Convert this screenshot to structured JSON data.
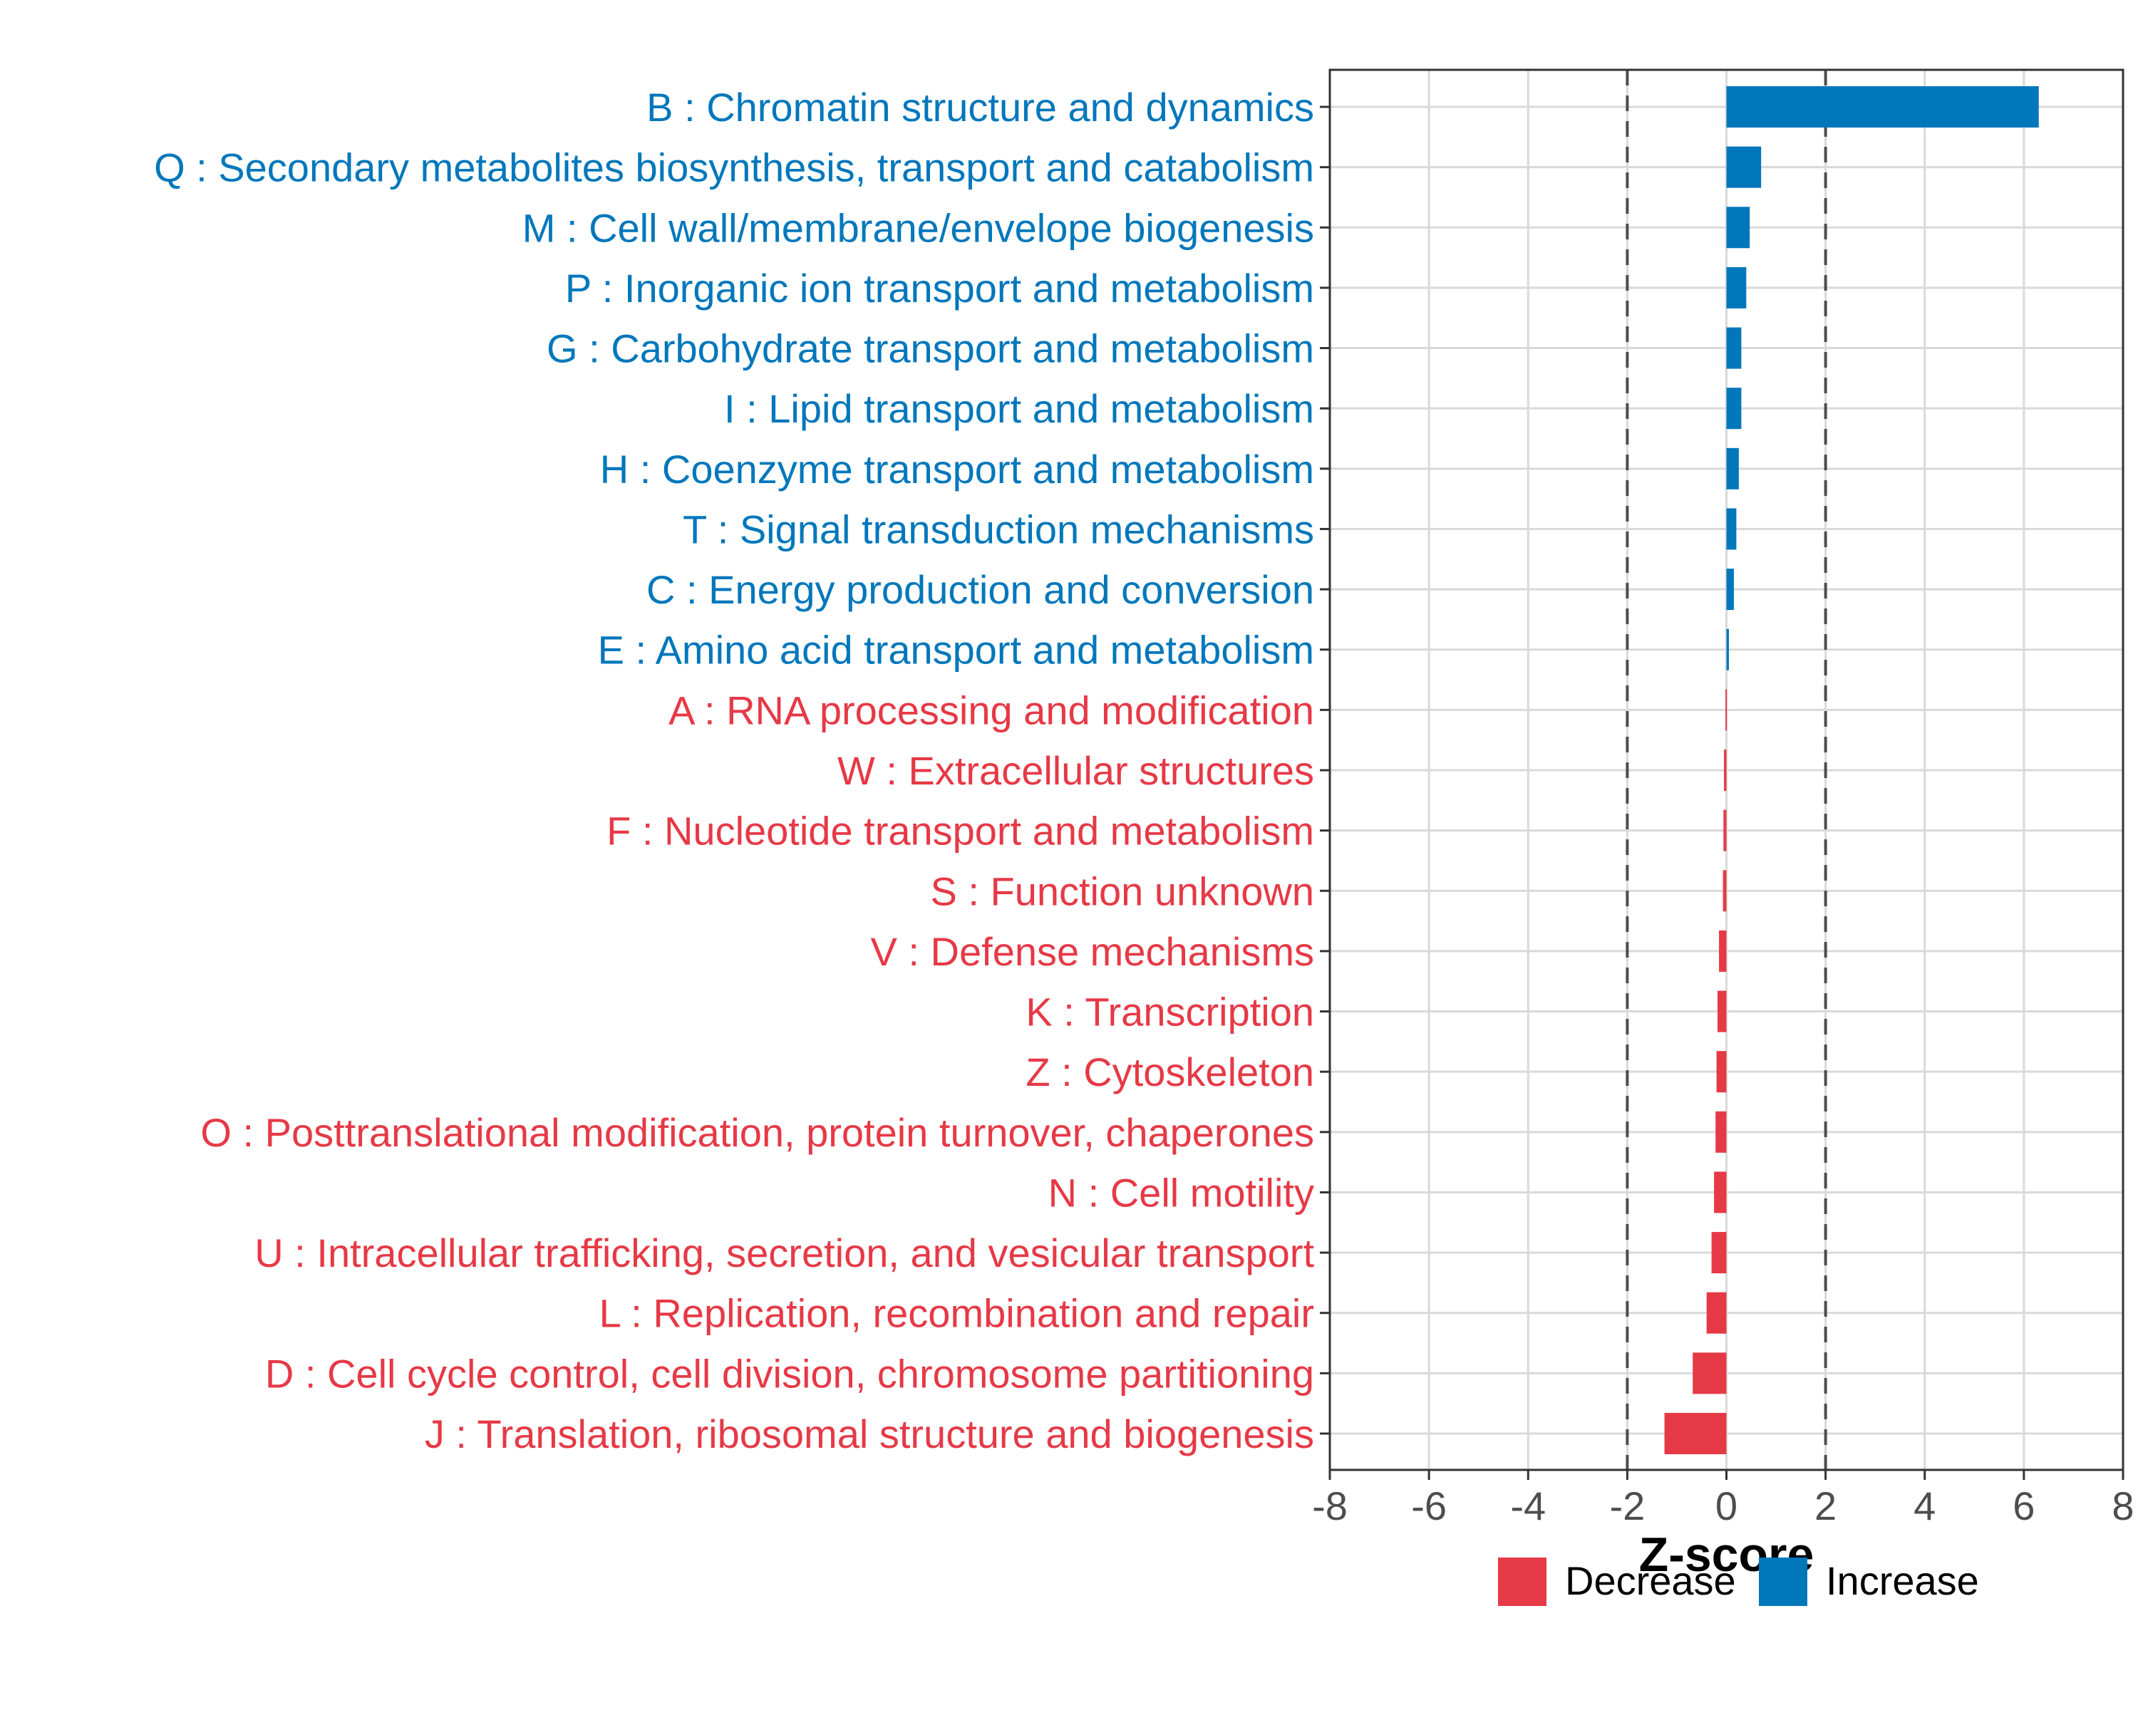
{
  "chart_data": {
    "type": "bar",
    "orientation": "horizontal",
    "xlabel": "Z-score",
    "ylabel": "",
    "xlim": [
      -8,
      8
    ],
    "xticks": [
      -8,
      -6,
      -4,
      -2,
      0,
      2,
      4,
      6,
      8
    ],
    "reference_lines": [
      -2,
      2
    ],
    "grid": true,
    "legend_position": "bottom",
    "legend": [
      {
        "label": "Decrease",
        "color": "#E63946"
      },
      {
        "label": "Increase",
        "color": "#0077BB"
      }
    ],
    "colors": {
      "Increase": "#0077BB",
      "Decrease": "#E63946"
    },
    "categories": [
      "B : Chromatin structure and dynamics",
      "Q : Secondary metabolites biosynthesis, transport and catabolism",
      "M : Cell wall/membrane/envelope biogenesis",
      "P : Inorganic ion transport and metabolism",
      "G : Carbohydrate transport and metabolism",
      "I : Lipid transport and metabolism",
      "H : Coenzyme transport and metabolism",
      "T : Signal transduction mechanisms",
      "C : Energy production and conversion",
      "E : Amino acid transport and metabolism",
      "A : RNA processing and modification",
      "W : Extracellular structures",
      "F : Nucleotide transport and metabolism",
      "S : Function unknown",
      "V : Defense mechanisms",
      "K : Transcription",
      "Z : Cytoskeleton",
      "O : Posttranslational modification, protein turnover, chaperones",
      "N : Cell motility",
      "U : Intracellular trafficking, secretion, and vesicular transport",
      "L : Replication, recombination and repair",
      "D : Cell cycle control, cell division, chromosome partitioning",
      "J : Translation, ribosomal structure and biogenesis"
    ],
    "values": [
      6.3,
      0.7,
      0.47,
      0.4,
      0.3,
      0.3,
      0.25,
      0.2,
      0.15,
      0.05,
      -0.02,
      -0.05,
      -0.06,
      -0.07,
      -0.15,
      -0.18,
      -0.2,
      -0.22,
      -0.25,
      -0.3,
      -0.4,
      -0.68,
      -1.25
    ],
    "groups": [
      "Increase",
      "Increase",
      "Increase",
      "Increase",
      "Increase",
      "Increase",
      "Increase",
      "Increase",
      "Increase",
      "Increase",
      "Decrease",
      "Decrease",
      "Decrease",
      "Decrease",
      "Decrease",
      "Decrease",
      "Decrease",
      "Decrease",
      "Decrease",
      "Decrease",
      "Decrease",
      "Decrease",
      "Decrease"
    ]
  }
}
